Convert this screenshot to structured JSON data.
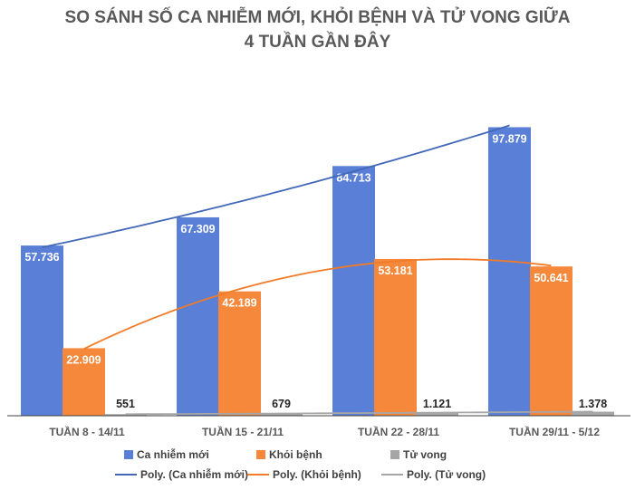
{
  "chart_data": {
    "type": "bar",
    "title_lines": [
      "SO SÁNH SỐ CA NHIỄM MỚI, KHỎI BỆNH VÀ TỬ VONG GIỮA",
      "4 TUẦN GẦN ĐÂY"
    ],
    "categories": [
      "TUẦN 8 - 14/11",
      "TUẦN 15 - 21/11",
      "TUẦN 22 - 28/11",
      "TUẦN 29/11 - 5/12"
    ],
    "series": [
      {
        "name": "Ca nhiễm mới",
        "values": [
          57736,
          67309,
          84713,
          97879
        ],
        "labels": [
          "57.736",
          "67.309",
          "84.713",
          "97.879"
        ],
        "color": "#5a7fd6"
      },
      {
        "name": "Khỏi bệnh",
        "values": [
          22909,
          42189,
          53181,
          50641
        ],
        "labels": [
          "22.909",
          "42.189",
          "53.181",
          "50.641"
        ],
        "color": "#f5883a"
      },
      {
        "name": "Tử vong",
        "values": [
          551,
          679,
          1121,
          1378
        ],
        "labels": [
          "551",
          "679",
          "1.121",
          "1.378"
        ],
        "color": "#a6a6a6"
      }
    ],
    "trendlines": [
      {
        "name": "Poly. (Ca nhiễm mới)",
        "series": 0,
        "color": "#4468b8"
      },
      {
        "name": "Poly. (Khỏi bệnh)",
        "series": 1,
        "color": "#f07c2a"
      },
      {
        "name": "Poly. (Tử vong)",
        "series": 2,
        "color": "#a6a6a6"
      }
    ],
    "ylim": [
      0,
      110000
    ],
    "grid": false,
    "legend_position": "bottom"
  }
}
